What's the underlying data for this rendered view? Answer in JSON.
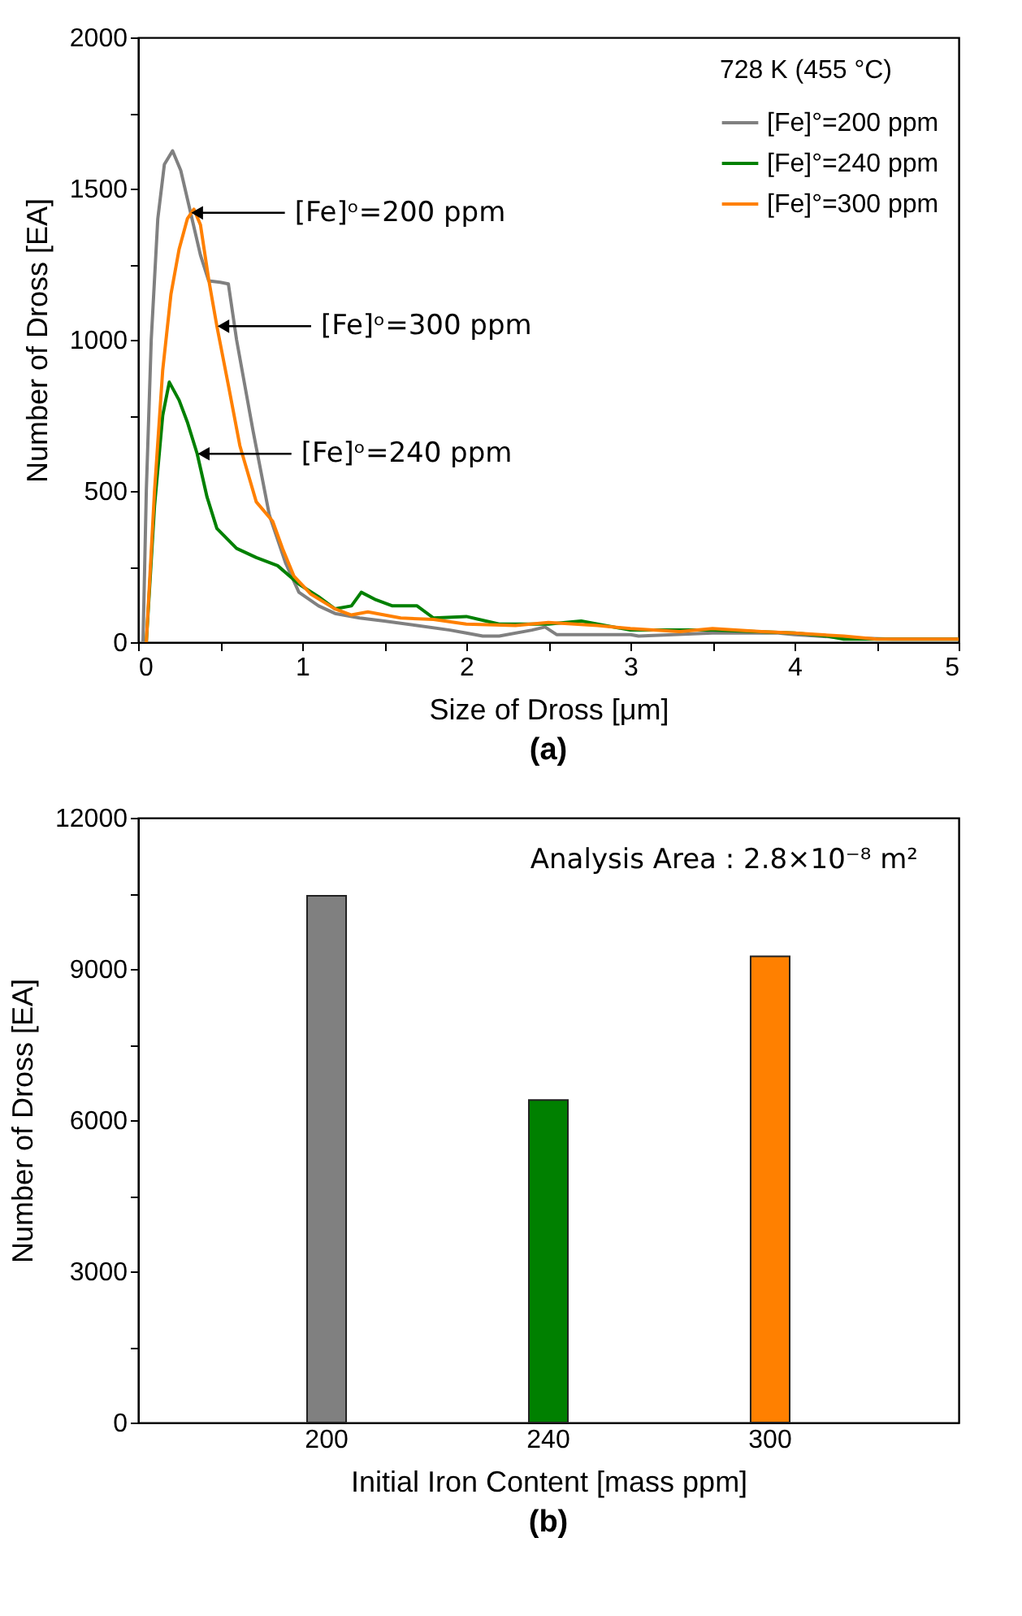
{
  "chart_data": [
    {
      "type": "line",
      "xlabel": "Size of Dross [μm]",
      "ylabel": "Number of Dross [EA]",
      "legend_title": "728 K (455 °C)",
      "legend": "top right",
      "xlim": [
        0,
        5
      ],
      "xticks": [
        0,
        {
          "value": 0.5,
          "label": null
        },
        1,
        {
          "value": 1.5,
          "label": null
        },
        2,
        {
          "value": 2.5,
          "label": null
        },
        3,
        {
          "value": 3.5,
          "label": null
        },
        4,
        {
          "value": 4.5,
          "label": null
        },
        5
      ],
      "ylim": [
        0,
        2000
      ],
      "yticks": [
        0,
        {
          "value": 250,
          "label": null
        },
        500,
        {
          "value": 750,
          "label": null
        },
        1000,
        {
          "value": 1250,
          "label": null
        },
        1500,
        {
          "value": 1750,
          "label": null
        },
        2000
      ],
      "series": [
        {
          "name": "[Fe]°=200 ppm",
          "color": "#808080",
          "x": [
            0.03,
            0.05,
            0.08,
            0.12,
            0.16,
            0.21,
            0.26,
            0.32,
            0.38,
            0.43,
            0.5,
            0.55,
            0.6,
            0.7,
            0.8,
            0.85,
            0.9,
            0.98,
            1.1,
            1.2,
            1.35,
            1.5,
            1.7,
            1.9,
            2.0,
            2.1,
            2.2,
            2.4,
            2.48,
            2.55,
            3.0,
            3.05,
            3.5,
            3.9,
            4.0,
            4.3,
            4.6,
            5.0
          ],
          "values": [
            0,
            500,
            1000,
            1400,
            1580,
            1625,
            1560,
            1420,
            1280,
            1195,
            1190,
            1185,
            1000,
            700,
            420,
            340,
            260,
            165,
            120,
            95,
            80,
            70,
            55,
            40,
            30,
            20,
            20,
            40,
            50,
            25,
            25,
            20,
            30,
            30,
            25,
            15,
            10,
            10
          ]
        },
        {
          "name": "[Fe]°=240 ppm",
          "color": "#008000",
          "x": [
            0.05,
            0.1,
            0.15,
            0.19,
            0.25,
            0.3,
            0.36,
            0.42,
            0.48,
            0.6,
            0.72,
            0.85,
            0.98,
            1.1,
            1.2,
            1.3,
            1.36,
            1.45,
            1.55,
            1.7,
            1.8,
            2.0,
            2.2,
            2.5,
            2.7,
            3.0,
            3.5,
            4.0,
            4.2,
            4.3,
            5.0
          ],
          "values": [
            0,
            450,
            750,
            860,
            800,
            728,
            623,
            480,
            376,
            310,
            280,
            253,
            192,
            150,
            110,
            120,
            165,
            140,
            120,
            120,
            80,
            85,
            60,
            60,
            70,
            40,
            40,
            30,
            20,
            10,
            10
          ]
        },
        {
          "name": "[Fe]°=300 ppm",
          "color": "#ff8000",
          "x": [
            0.05,
            0.1,
            0.15,
            0.2,
            0.25,
            0.3,
            0.34,
            0.38,
            0.43,
            0.48,
            0.55,
            0.62,
            0.72,
            0.82,
            0.88,
            0.95,
            1.05,
            1.2,
            1.3,
            1.4,
            1.6,
            1.8,
            2.0,
            2.3,
            2.5,
            2.8,
            3.0,
            3.3,
            3.5,
            3.8,
            4.0,
            4.3,
            4.5,
            5.0
          ],
          "values": [
            0,
            500,
            900,
            1150,
            1300,
            1400,
            1432,
            1380,
            1200,
            1045,
            850,
            650,
            464,
            400,
            310,
            218,
            160,
            110,
            90,
            100,
            80,
            75,
            60,
            55,
            65,
            55,
            45,
            35,
            45,
            35,
            30,
            20,
            10,
            10
          ]
        }
      ],
      "annotations": [
        {
          "text": "[Fe]ᵒ=200 ppm",
          "x": 0.32,
          "y": 1420
        },
        {
          "text": "[Fe]ᵒ=300 ppm",
          "x": 0.48,
          "y": 1045
        },
        {
          "text": "[Fe]ᵒ=240 ppm",
          "x": 0.36,
          "y": 623
        },
        "(a)"
      ]
    },
    {
      "type": "bar",
      "xlabel": "Initial Iron Content [mass ppm]",
      "ylabel": "Number of Dross [EA]",
      "categories": [
        "200",
        "240",
        "300"
      ],
      "values": [
        10450,
        6400,
        9250
      ],
      "colors": [
        "#808080",
        "#008000",
        "#ff8000"
      ],
      "ylim": [
        0,
        12000
      ],
      "yticks": [
        0,
        {
          "value": 1500,
          "label": null
        },
        3000,
        {
          "value": 4500,
          "label": null
        },
        6000,
        {
          "value": 7500,
          "label": null
        },
        9000,
        {
          "value": 10500,
          "label": null
        },
        12000
      ],
      "annotations": [
        "Analysis Area : 2.8×10⁻⁸ m²",
        "(b)"
      ]
    }
  ]
}
